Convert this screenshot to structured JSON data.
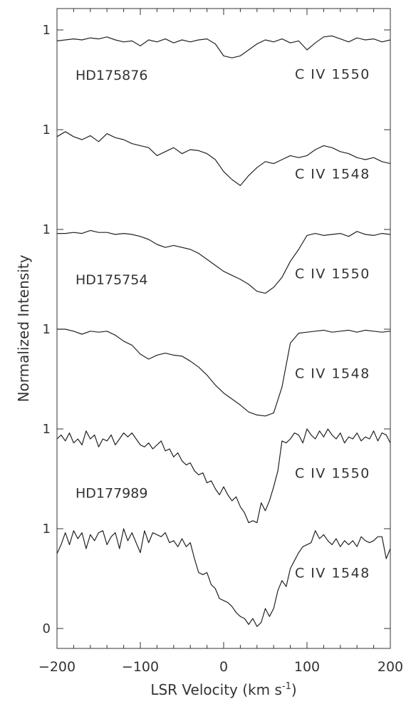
{
  "chart_data": {
    "type": "line",
    "xlabel": "LSR Velocity (km s",
    "xlabel_sup": "-1",
    "xlabel_close": ")",
    "ylabel": "Normalized Intensity",
    "xlim": [
      -200,
      200
    ],
    "ylim": [
      0,
      6.0
    ],
    "x_ticks": [
      -200,
      -100,
      0,
      100,
      200
    ],
    "x_tick_labels": [
      "−200",
      "−100",
      "0",
      "100",
      "200"
    ],
    "y_tick_labels": [
      {
        "y": 0,
        "label": "0"
      },
      {
        "y": 1,
        "label": "1"
      },
      {
        "y": 2,
        "label": "1"
      },
      {
        "y": 3,
        "label": "1"
      },
      {
        "y": 4,
        "label": "1"
      },
      {
        "y": 5,
        "label": "1"
      },
      {
        "y": 6,
        "label": "1"
      }
    ],
    "stars": [
      {
        "label": "HD175876",
        "y": 5.55
      },
      {
        "label": "HD175754",
        "y": 3.5
      },
      {
        "label": "HD177989",
        "y": 1.36
      }
    ],
    "series": [
      {
        "name": "C IV 1550",
        "offset": 5,
        "x": [
          -200,
          -190,
          -180,
          -170,
          -160,
          -150,
          -140,
          -130,
          -120,
          -110,
          -100,
          -90,
          -80,
          -70,
          -60,
          -50,
          -40,
          -30,
          -20,
          -10,
          0,
          10,
          20,
          30,
          40,
          50,
          60,
          70,
          80,
          90,
          100,
          110,
          120,
          130,
          140,
          150,
          160,
          170,
          180,
          190,
          200
        ],
        "y": [
          0.89,
          0.9,
          0.91,
          0.9,
          0.92,
          0.91,
          0.93,
          0.9,
          0.88,
          0.89,
          0.84,
          0.9,
          0.88,
          0.91,
          0.87,
          0.9,
          0.88,
          0.9,
          0.91,
          0.86,
          0.74,
          0.72,
          0.74,
          0.8,
          0.86,
          0.9,
          0.88,
          0.91,
          0.87,
          0.89,
          0.8,
          0.87,
          0.93,
          0.94,
          0.91,
          0.88,
          0.92,
          0.9,
          0.91,
          0.88,
          0.9
        ]
      },
      {
        "name": "C IV 1548",
        "offset": 4,
        "x": [
          -200,
          -190,
          -180,
          -170,
          -160,
          -150,
          -140,
          -130,
          -120,
          -110,
          -100,
          -90,
          -80,
          -70,
          -60,
          -50,
          -40,
          -30,
          -20,
          -10,
          0,
          10,
          20,
          30,
          40,
          50,
          60,
          70,
          80,
          90,
          100,
          110,
          120,
          130,
          140,
          150,
          160,
          170,
          180,
          190,
          200
        ],
        "y": [
          0.93,
          0.98,
          0.93,
          0.9,
          0.94,
          0.88,
          0.96,
          0.92,
          0.9,
          0.86,
          0.84,
          0.82,
          0.74,
          0.78,
          0.82,
          0.76,
          0.8,
          0.79,
          0.76,
          0.7,
          0.58,
          0.5,
          0.44,
          0.54,
          0.62,
          0.68,
          0.66,
          0.7,
          0.74,
          0.72,
          0.74,
          0.8,
          0.84,
          0.82,
          0.78,
          0.76,
          0.72,
          0.7,
          0.72,
          0.68,
          0.66
        ]
      },
      {
        "name": "C IV 1550",
        "offset": 3,
        "x": [
          -200,
          -190,
          -180,
          -170,
          -160,
          -150,
          -140,
          -130,
          -120,
          -110,
          -100,
          -90,
          -80,
          -70,
          -60,
          -50,
          -40,
          -30,
          -20,
          -10,
          0,
          10,
          20,
          30,
          40,
          50,
          60,
          70,
          80,
          90,
          100,
          110,
          120,
          130,
          140,
          150,
          160,
          170,
          180,
          190,
          200
        ],
        "y": [
          0.96,
          0.96,
          0.97,
          0.96,
          0.99,
          0.97,
          0.97,
          0.95,
          0.96,
          0.95,
          0.93,
          0.9,
          0.85,
          0.82,
          0.84,
          0.82,
          0.8,
          0.76,
          0.7,
          0.64,
          0.58,
          0.54,
          0.5,
          0.45,
          0.38,
          0.36,
          0.42,
          0.52,
          0.68,
          0.8,
          0.94,
          0.96,
          0.94,
          0.95,
          0.96,
          0.93,
          0.98,
          0.95,
          0.94,
          0.96,
          0.95
        ]
      },
      {
        "name": "C IV 1548",
        "offset": 2,
        "x": [
          -200,
          -190,
          -180,
          -170,
          -160,
          -150,
          -140,
          -130,
          -120,
          -110,
          -100,
          -90,
          -80,
          -70,
          -60,
          -50,
          -40,
          -30,
          -20,
          -10,
          0,
          10,
          20,
          30,
          40,
          50,
          60,
          70,
          80,
          90,
          100,
          110,
          120,
          130,
          140,
          150,
          160,
          170,
          180,
          190,
          200
        ],
        "y": [
          1.0,
          1.0,
          0.98,
          0.95,
          0.98,
          0.97,
          0.98,
          0.94,
          0.88,
          0.84,
          0.75,
          0.7,
          0.74,
          0.76,
          0.74,
          0.73,
          0.68,
          0.62,
          0.54,
          0.44,
          0.36,
          0.3,
          0.24,
          0.17,
          0.14,
          0.13,
          0.16,
          0.42,
          0.86,
          0.96,
          0.97,
          0.98,
          0.99,
          0.97,
          0.98,
          0.99,
          0.97,
          0.99,
          0.98,
          0.97,
          0.98
        ]
      },
      {
        "name": "C IV 1550",
        "offset": 1,
        "x": [
          -200,
          -195,
          -190,
          -185,
          -180,
          -175,
          -170,
          -165,
          -160,
          -155,
          -150,
          -145,
          -140,
          -135,
          -130,
          -125,
          -120,
          -115,
          -110,
          -105,
          -100,
          -95,
          -90,
          -85,
          -80,
          -75,
          -70,
          -65,
          -60,
          -55,
          -50,
          -45,
          -40,
          -35,
          -30,
          -25,
          -20,
          -15,
          -10,
          -5,
          0,
          5,
          10,
          15,
          20,
          25,
          30,
          35,
          40,
          45,
          50,
          55,
          60,
          65,
          70,
          75,
          80,
          85,
          90,
          95,
          100,
          105,
          110,
          115,
          120,
          125,
          130,
          135,
          140,
          145,
          150,
          155,
          160,
          165,
          170,
          175,
          180,
          185,
          190,
          195,
          200
        ],
        "y": [
          0.9,
          0.94,
          0.88,
          0.96,
          0.86,
          0.9,
          0.84,
          0.98,
          0.9,
          0.94,
          0.82,
          0.9,
          0.88,
          0.94,
          0.84,
          0.9,
          0.96,
          0.92,
          0.96,
          0.9,
          0.84,
          0.82,
          0.86,
          0.8,
          0.84,
          0.88,
          0.78,
          0.8,
          0.72,
          0.76,
          0.68,
          0.64,
          0.66,
          0.58,
          0.54,
          0.56,
          0.46,
          0.48,
          0.4,
          0.34,
          0.42,
          0.34,
          0.28,
          0.32,
          0.22,
          0.16,
          0.06,
          0.08,
          0.06,
          0.26,
          0.18,
          0.28,
          0.42,
          0.58,
          0.88,
          0.86,
          0.9,
          0.96,
          0.94,
          0.86,
          1.0,
          0.94,
          0.9,
          0.98,
          0.92,
          1.0,
          0.94,
          0.9,
          0.96,
          0.86,
          0.92,
          0.9,
          0.96,
          0.88,
          0.92,
          0.9,
          0.98,
          0.88,
          0.96,
          0.94,
          0.86
        ]
      },
      {
        "name": "C IV 1548",
        "offset": 0,
        "x": [
          -200,
          -195,
          -190,
          -185,
          -180,
          -175,
          -170,
          -165,
          -160,
          -155,
          -150,
          -145,
          -140,
          -135,
          -130,
          -125,
          -120,
          -115,
          -110,
          -105,
          -100,
          -95,
          -90,
          -85,
          -80,
          -75,
          -70,
          -65,
          -60,
          -55,
          -50,
          -45,
          -40,
          -35,
          -30,
          -25,
          -20,
          -15,
          -10,
          -5,
          0,
          5,
          10,
          15,
          20,
          25,
          30,
          35,
          40,
          45,
          50,
          55,
          60,
          65,
          70,
          75,
          80,
          85,
          90,
          95,
          100,
          105,
          110,
          115,
          120,
          125,
          130,
          135,
          140,
          145,
          150,
          155,
          160,
          165,
          170,
          175,
          180,
          185,
          190,
          195,
          200
        ],
        "y": [
          0.75,
          0.84,
          0.96,
          0.84,
          0.98,
          0.9,
          0.96,
          0.8,
          0.94,
          0.88,
          0.96,
          0.98,
          0.84,
          0.92,
          0.96,
          0.8,
          1.0,
          0.88,
          0.96,
          0.86,
          0.76,
          0.98,
          0.86,
          0.96,
          0.94,
          0.92,
          0.96,
          0.86,
          0.88,
          0.82,
          0.9,
          0.82,
          0.86,
          0.7,
          0.56,
          0.54,
          0.56,
          0.44,
          0.4,
          0.3,
          0.28,
          0.26,
          0.22,
          0.16,
          0.12,
          0.1,
          0.04,
          0.1,
          0.02,
          0.06,
          0.2,
          0.12,
          0.2,
          0.38,
          0.48,
          0.42,
          0.6,
          0.68,
          0.76,
          0.82,
          0.84,
          0.86,
          0.98,
          0.9,
          0.94,
          0.88,
          0.84,
          0.9,
          0.82,
          0.88,
          0.84,
          0.88,
          0.82,
          0.92,
          0.88,
          0.86,
          0.88,
          0.92,
          0.92,
          0.7,
          0.8
        ]
      }
    ],
    "line_labels": [
      {
        "text": "C IV 1550",
        "y": 5.56
      },
      {
        "text": "C IV 1548",
        "y": 4.56
      },
      {
        "text": "C IV 1550",
        "y": 3.56
      },
      {
        "text": "C IV 1548",
        "y": 2.56
      },
      {
        "text": "C IV 1550",
        "y": 1.56
      },
      {
        "text": "C IV 1548",
        "y": 0.56
      }
    ]
  }
}
